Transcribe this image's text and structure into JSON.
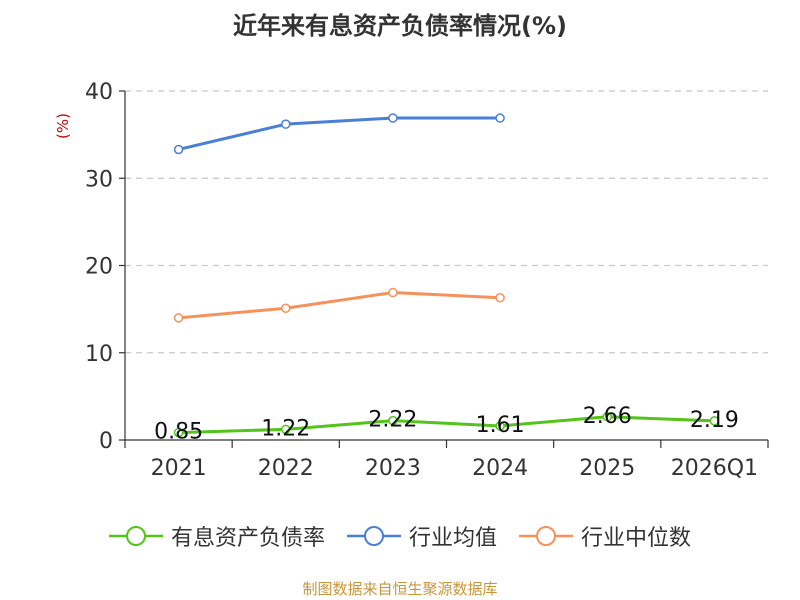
{
  "title": "近年来有息资产负债率情况(%)",
  "source_note": "制图数据来自恒生聚源数据库",
  "chart_data": {
    "type": "line",
    "title": "近年来有息资产负债率情况(%)",
    "ylabel": "(%)",
    "ylim": [
      0,
      40
    ],
    "yticks": [
      0,
      10,
      20,
      30,
      40
    ],
    "ytick_labels": [
      "0",
      "10",
      "20",
      "30",
      "40"
    ],
    "categories": [
      "2021",
      "2022",
      "2023",
      "2024",
      "2025",
      "2026Q1"
    ],
    "grid": true,
    "legend_position": "bottom",
    "series": [
      {
        "name": "有息资产负债率",
        "color": "#52c41a",
        "values": [
          0.85,
          1.22,
          2.22,
          1.61,
          2.66,
          2.19
        ],
        "labels": [
          "0.85",
          "1.22",
          "2.22",
          "1.61",
          "2.66",
          "2.19"
        ]
      },
      {
        "name": "行业均值",
        "color": "#4a7fd6",
        "values": [
          33.3,
          36.2,
          36.9,
          36.9,
          null,
          null
        ]
      },
      {
        "name": "行业中位数",
        "color": "#f5915a",
        "values": [
          14.0,
          15.1,
          16.9,
          16.3,
          null,
          null
        ]
      }
    ]
  }
}
